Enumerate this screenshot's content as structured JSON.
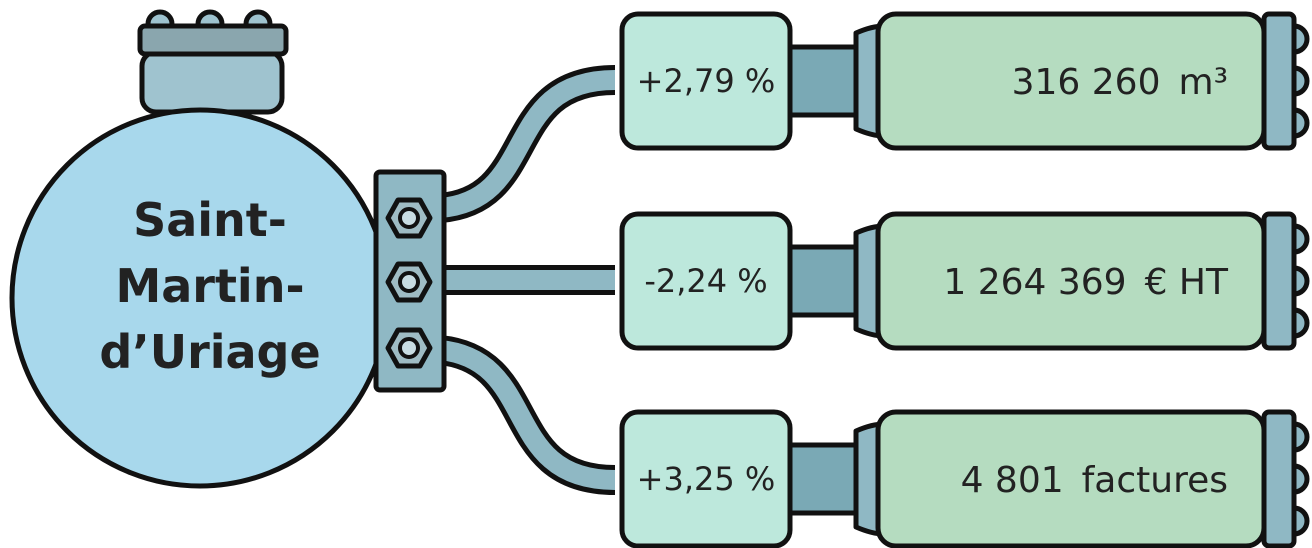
{
  "title": {
    "lines": [
      "Saint-",
      "Martin-",
      "d’Uriage"
    ]
  },
  "rows": [
    {
      "change": "+2,79 %",
      "value": "316 260",
      "unit": "m³"
    },
    {
      "change": "-2,24 %",
      "value": "1 264 369",
      "unit": "€ HT"
    },
    {
      "change": "+3,25 %",
      "value": "4 801",
      "unit": "factures"
    }
  ]
}
